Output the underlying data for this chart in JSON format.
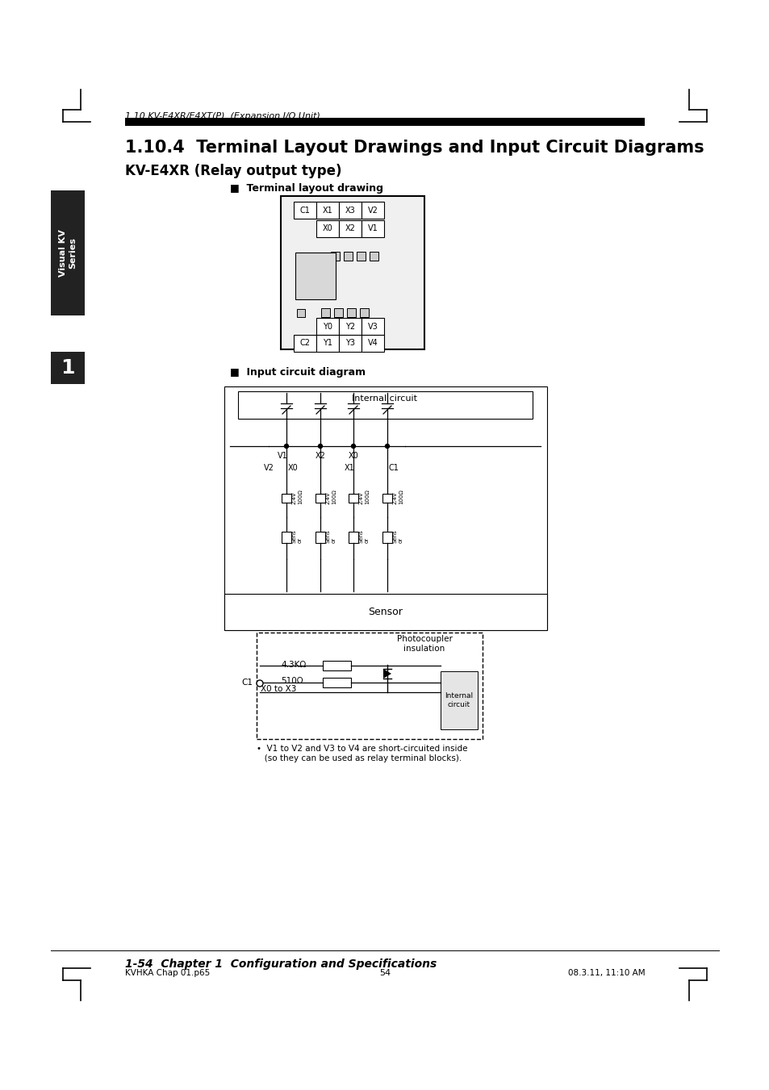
{
  "page_bg": "#ffffff",
  "header_italic": "1.10 KV-E4XR/E4XT(P)  (Expansion I/O Unit)",
  "section_title": "1.10.4  Terminal Layout Drawings and Input Circuit Diagrams",
  "sub_title": "KV-E4XR (Relay output type)",
  "terminal_label": "■  Terminal layout drawing",
  "input_circuit_label": "■  Input circuit diagram",
  "sidebar_text": "Visual KV\nSeries",
  "sidebar_bg": "#222222",
  "chapter_label": "1",
  "chapter_bg": "#222222",
  "footer_left": "KVHKA Chap 01.p65",
  "footer_center": "54",
  "footer_right": "08.3.11, 11:10 AM",
  "footer_chapter": "1-54  Chapter 1  Configuration and Specifications",
  "sensor_label": "Sensor",
  "photocoupler_label": "Photocoupler\ninsulation",
  "internal_circuit_label": "Internal circuit",
  "resistor1_label": "4.3KΩ",
  "resistor2_label": "510Ω",
  "note_text": "•  V1 to V2 and V3 to V4 are short-circuited inside\n   (so they can be used as relay terminal blocks).",
  "x0_x3_label": "X0 to X3",
  "c1_label": "C1",
  "term_top_row1": [
    "C1",
    "X1",
    "X3",
    "V2"
  ],
  "term_top_row2": [
    "X0",
    "X2",
    "V1"
  ],
  "term_bot_row1": [
    "Y0",
    "Y2",
    "V3"
  ],
  "term_bot_row2": [
    "C2",
    "Y1",
    "Y3",
    "V4"
  ]
}
